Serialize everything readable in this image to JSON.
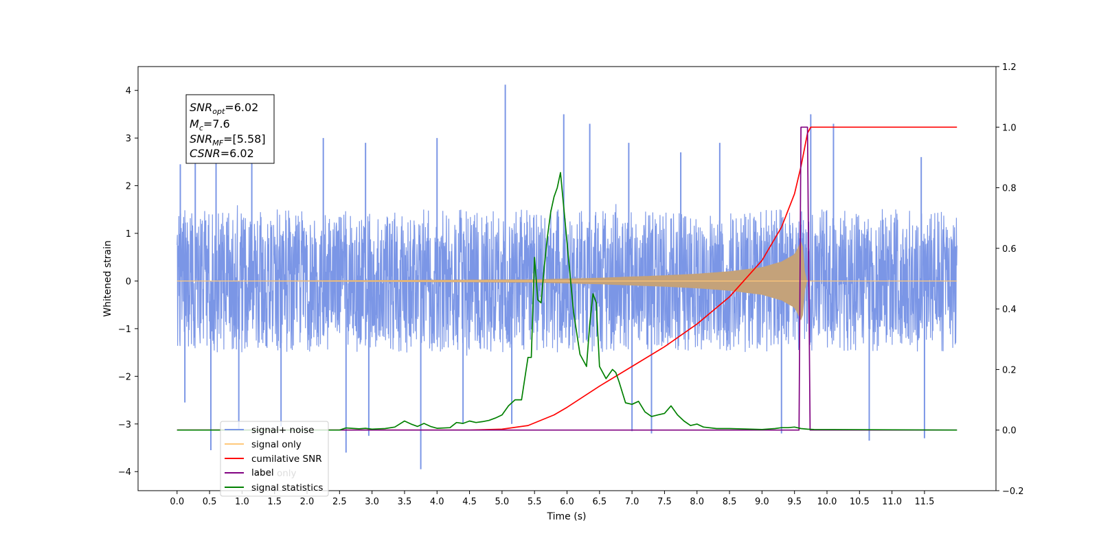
{
  "chart_data": {
    "type": "line",
    "xlabel": "Time (s)",
    "ylabel": "Whitened strain",
    "xlim": [
      -0.6,
      12.6
    ],
    "ylim_left": [
      -4.4,
      4.5
    ],
    "ylim_right": [
      -0.2,
      1.2
    ],
    "x_ticks": [
      "0.0",
      "0.5",
      "1.0",
      "1.5",
      "2.0",
      "2.5",
      "3.0",
      "3.5",
      "4.0",
      "4.5",
      "5.0",
      "5.5",
      "6.0",
      "6.5",
      "7.0",
      "7.5",
      "8.0",
      "8.5",
      "9.0",
      "9.5",
      "10.0",
      "10.5",
      "11.0",
      "11.5"
    ],
    "y_ticks_left": [
      "−4",
      "−3",
      "−2",
      "−1",
      "0",
      "1",
      "2",
      "3",
      "4"
    ],
    "y_ticks_right": [
      "−0.2",
      "0.0",
      "0.2",
      "0.4",
      "0.6",
      "0.8",
      "1.0",
      "1.2"
    ],
    "annotation": {
      "snr_opt": {
        "base": "SNR",
        "sub": "opt",
        "value": "=6.02"
      },
      "mc": {
        "base": "M",
        "sub": "c",
        "value": "=7.6"
      },
      "snr_mf": {
        "base": "SNR",
        "sub": "MF",
        "value": "=[5.58]"
      },
      "csnr": {
        "base": "CSNR",
        "value": "=6.02"
      }
    },
    "legend": {
      "placement": "lower-left",
      "entries": [
        "signal+ noise",
        "signal only",
        "cumilative SNR",
        "label",
        "signal statistics"
      ],
      "hidden_text": "label only"
    },
    "series": [
      {
        "name": "signal+ noise",
        "axis": "left",
        "color": "#7b96e6",
        "x_range": [
          0.0,
          12.0
        ],
        "typical_amplitude": [
          -1.8,
          1.9
        ],
        "spikes": [
          {
            "x": 0.05,
            "y": 2.45
          },
          {
            "x": 0.12,
            "y": -2.55
          },
          {
            "x": 0.28,
            "y": 2.7
          },
          {
            "x": 0.52,
            "y": -3.55
          },
          {
            "x": 0.6,
            "y": 2.95
          },
          {
            "x": 0.95,
            "y": -3.1
          },
          {
            "x": 1.15,
            "y": 2.85
          },
          {
            "x": 1.6,
            "y": -3.05
          },
          {
            "x": 2.25,
            "y": 3.0
          },
          {
            "x": 2.6,
            "y": -3.6
          },
          {
            "x": 2.9,
            "y": 2.9
          },
          {
            "x": 2.95,
            "y": -3.25
          },
          {
            "x": 3.75,
            "y": -3.95
          },
          {
            "x": 4.0,
            "y": 3.0
          },
          {
            "x": 4.4,
            "y": -3.0
          },
          {
            "x": 5.05,
            "y": 4.12
          },
          {
            "x": 5.15,
            "y": -3.0
          },
          {
            "x": 5.95,
            "y": 3.5
          },
          {
            "x": 6.35,
            "y": 3.3
          },
          {
            "x": 6.95,
            "y": 2.9
          },
          {
            "x": 7.0,
            "y": -3.15
          },
          {
            "x": 7.3,
            "y": -3.2
          },
          {
            "x": 7.75,
            "y": 2.7
          },
          {
            "x": 8.35,
            "y": 2.9
          },
          {
            "x": 9.3,
            "y": -3.2
          },
          {
            "x": 9.75,
            "y": 3.5
          },
          {
            "x": 10.1,
            "y": 3.3
          },
          {
            "x": 10.65,
            "y": -3.35
          },
          {
            "x": 11.5,
            "y": -3.3
          },
          {
            "x": 11.45,
            "y": 2.6
          }
        ]
      },
      {
        "name": "signal only",
        "axis": "left",
        "color": "#ffc87a",
        "x": [
          0.0,
          5.5,
          6.5,
          7.5,
          8.0,
          8.5,
          9.0,
          9.3,
          9.5,
          9.62,
          9.67,
          9.72,
          12.0
        ],
        "envelope": [
          0.0,
          0.02,
          0.04,
          0.07,
          0.09,
          0.12,
          0.17,
          0.24,
          0.33,
          0.52,
          0.02,
          0.0,
          0.0
        ]
      },
      {
        "name": "cumilative SNR",
        "axis": "right",
        "color": "#ff0000",
        "x": [
          0.0,
          4.5,
          5.0,
          5.4,
          5.8,
          6.0,
          6.5,
          7.0,
          7.5,
          8.0,
          8.5,
          9.0,
          9.3,
          9.5,
          9.6,
          9.7,
          9.75,
          12.0
        ],
        "y": [
          0.0,
          0.0,
          0.003,
          0.015,
          0.05,
          0.075,
          0.145,
          0.21,
          0.275,
          0.35,
          0.44,
          0.56,
          0.67,
          0.78,
          0.87,
          0.98,
          1.0,
          1.0
        ]
      },
      {
        "name": "label",
        "axis": "right",
        "color": "#800080",
        "x": [
          0.0,
          9.57,
          9.6,
          9.7,
          9.74,
          12.0
        ],
        "y": [
          0.0,
          0.0,
          1.0,
          1.0,
          0.0,
          0.0
        ]
      },
      {
        "name": "signal statistics",
        "axis": "right",
        "color": "#008000",
        "x": [
          0.0,
          2.5,
          2.6,
          2.8,
          2.9,
          3.0,
          3.2,
          3.35,
          3.5,
          3.6,
          3.7,
          3.8,
          3.9,
          4.0,
          4.2,
          4.3,
          4.4,
          4.5,
          4.6,
          4.7,
          4.8,
          4.9,
          5.0,
          5.1,
          5.2,
          5.3,
          5.4,
          5.45,
          5.5,
          5.55,
          5.6,
          5.65,
          5.7,
          5.75,
          5.8,
          5.85,
          5.9,
          6.0,
          6.1,
          6.2,
          6.3,
          6.35,
          6.4,
          6.45,
          6.5,
          6.6,
          6.7,
          6.75,
          6.8,
          6.9,
          7.0,
          7.1,
          7.2,
          7.3,
          7.4,
          7.5,
          7.6,
          7.7,
          7.8,
          7.9,
          8.0,
          8.1,
          8.3,
          8.5,
          9.0,
          9.2,
          9.3,
          9.4,
          9.5,
          9.6,
          9.7,
          9.8,
          12.0
        ],
        "y": [
          0.0,
          0.0,
          0.007,
          0.004,
          0.006,
          0.003,
          0.005,
          0.01,
          0.03,
          0.02,
          0.012,
          0.022,
          0.012,
          0.006,
          0.008,
          0.025,
          0.022,
          0.03,
          0.025,
          0.028,
          0.032,
          0.04,
          0.05,
          0.08,
          0.1,
          0.1,
          0.24,
          0.24,
          0.57,
          0.43,
          0.42,
          0.54,
          0.64,
          0.72,
          0.77,
          0.8,
          0.85,
          0.62,
          0.39,
          0.25,
          0.21,
          0.35,
          0.45,
          0.42,
          0.21,
          0.17,
          0.2,
          0.19,
          0.16,
          0.09,
          0.085,
          0.095,
          0.06,
          0.045,
          0.05,
          0.055,
          0.08,
          0.05,
          0.03,
          0.015,
          0.02,
          0.01,
          0.005,
          0.005,
          0.002,
          0.005,
          0.008,
          0.008,
          0.01,
          0.005,
          0.003,
          0.002,
          0.0
        ]
      }
    ]
  }
}
